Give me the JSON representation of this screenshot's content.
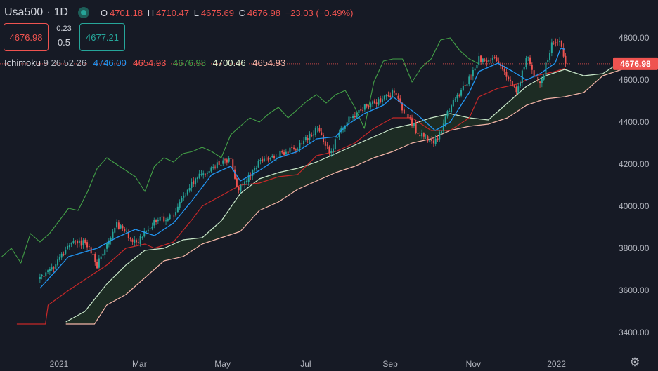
{
  "header": {
    "symbol": "Usa500",
    "separator": "·",
    "timeframe": "1D",
    "ohlc": {
      "o_label": "O",
      "o_value": "4701.18",
      "h_label": "H",
      "h_value": "4710.47",
      "l_label": "L",
      "l_value": "4675.69",
      "c_label": "C",
      "c_value": "4676.98",
      "change": "−23.03 (−0.49%)"
    }
  },
  "trade": {
    "sell_price": "4676.98",
    "spread_top": "0.23",
    "spread_bottom": "0.5",
    "buy_price": "4677.21"
  },
  "indicator": {
    "name": "Ichimoku",
    "params": "9 26 52 26",
    "values": [
      "4746.00",
      "4654.93",
      "4676.98",
      "4700.46",
      "4654.93"
    ],
    "value_colors": [
      "#2196f3",
      "#ef5350",
      "#43a047",
      "#e0f2d0",
      "#f4b5a8"
    ]
  },
  "colors": {
    "background": "#161a25",
    "up": "#26a69a",
    "down": "#ef5350",
    "conversion_line": "#2196f3",
    "base_line": "#c62828",
    "lagging_span": "#43a047",
    "leading_span_a": "#c8e6c9",
    "leading_span_b": "#f4b5a8",
    "cloud_fill": "#1e3024",
    "price_label_bg": "#ef5350"
  },
  "icons": {
    "settings": "gear-icon"
  },
  "chart_data": {
    "type": "candlestick",
    "ylim": [
      3400,
      4800
    ],
    "y_ticks": [
      "4800.00",
      "4600.00",
      "4400.00",
      "4200.00",
      "4000.00",
      "3800.00",
      "3600.00",
      "3400.00"
    ],
    "x_ticks": [
      "2021",
      "Mar",
      "May",
      "Jul",
      "Sep",
      "Nov",
      "2022"
    ],
    "current_price": "4676.98",
    "close_anchors": [
      [
        "2020-12-18",
        3650
      ],
      [
        "2020-12-30",
        3720
      ],
      [
        "2021-01-08",
        3820
      ],
      [
        "2021-01-20",
        3830
      ],
      [
        "2021-01-29",
        3720
      ],
      [
        "2021-02-12",
        3920
      ],
      [
        "2021-02-26",
        3820
      ],
      [
        "2021-03-12",
        3930
      ],
      [
        "2021-03-26",
        3950
      ],
      [
        "2021-04-09",
        4120
      ],
      [
        "2021-04-23",
        4180
      ],
      [
        "2021-05-07",
        4230
      ],
      [
        "2021-05-12",
        4070
      ],
      [
        "2021-05-28",
        4210
      ],
      [
        "2021-06-11",
        4250
      ],
      [
        "2021-06-25",
        4280
      ],
      [
        "2021-07-09",
        4370
      ],
      [
        "2021-07-19",
        4260
      ],
      [
        "2021-07-30",
        4400
      ],
      [
        "2021-08-13",
        4470
      ],
      [
        "2021-08-27",
        4510
      ],
      [
        "2021-09-03",
        4540
      ],
      [
        "2021-09-20",
        4360
      ],
      [
        "2021-10-04",
        4300
      ],
      [
        "2021-10-15",
        4470
      ],
      [
        "2021-10-29",
        4610
      ],
      [
        "2021-11-05",
        4700
      ],
      [
        "2021-11-19",
        4700
      ],
      [
        "2021-11-30",
        4560
      ],
      [
        "2021-12-03",
        4540
      ],
      [
        "2021-12-10",
        4710
      ],
      [
        "2021-12-20",
        4570
      ],
      [
        "2021-12-29",
        4790
      ],
      [
        "2022-01-04",
        4790
      ],
      [
        "2022-01-07",
        4676.98
      ]
    ],
    "tenkan_anchors": [
      [
        "2020-12-18",
        3610
      ],
      [
        "2021-01-08",
        3760
      ],
      [
        "2021-01-29",
        3800
      ],
      [
        "2021-02-12",
        3850
      ],
      [
        "2021-02-26",
        3890
      ],
      [
        "2021-03-12",
        3860
      ],
      [
        "2021-03-26",
        3920
      ],
      [
        "2021-04-09",
        4030
      ],
      [
        "2021-04-23",
        4150
      ],
      [
        "2021-05-07",
        4190
      ],
      [
        "2021-05-14",
        4120
      ],
      [
        "2021-05-28",
        4170
      ],
      [
        "2021-06-11",
        4230
      ],
      [
        "2021-06-25",
        4260
      ],
      [
        "2021-07-09",
        4320
      ],
      [
        "2021-07-23",
        4330
      ],
      [
        "2021-07-30",
        4380
      ],
      [
        "2021-08-13",
        4440
      ],
      [
        "2021-08-27",
        4480
      ],
      [
        "2021-09-03",
        4520
      ],
      [
        "2021-09-20",
        4440
      ],
      [
        "2021-10-04",
        4360
      ],
      [
        "2021-10-15",
        4400
      ],
      [
        "2021-10-29",
        4540
      ],
      [
        "2021-11-05",
        4640
      ],
      [
        "2021-11-19",
        4680
      ],
      [
        "2021-11-30",
        4640
      ],
      [
        "2021-12-10",
        4600
      ],
      [
        "2021-12-20",
        4630
      ],
      [
        "2021-12-31",
        4680
      ],
      [
        "2022-01-04",
        4750
      ],
      [
        "2022-01-07",
        4746
      ]
    ],
    "kijun_anchors": [
      [
        "2020-12-01",
        3440
      ],
      [
        "2020-12-22",
        3440
      ],
      [
        "2020-12-24",
        3530
      ],
      [
        "2021-01-08",
        3600
      ],
      [
        "2021-01-22",
        3660
      ],
      [
        "2021-02-05",
        3720
      ],
      [
        "2021-02-19",
        3800
      ],
      [
        "2021-03-05",
        3820
      ],
      [
        "2021-03-12",
        3800
      ],
      [
        "2021-03-26",
        3830
      ],
      [
        "2021-04-09",
        3940
      ],
      [
        "2021-04-16",
        4000
      ],
      [
        "2021-04-30",
        4050
      ],
      [
        "2021-05-14",
        4100
      ],
      [
        "2021-05-28",
        4110
      ],
      [
        "2021-06-11",
        4140
      ],
      [
        "2021-06-25",
        4150
      ],
      [
        "2021-07-09",
        4240
      ],
      [
        "2021-07-23",
        4260
      ],
      [
        "2021-08-06",
        4300
      ],
      [
        "2021-08-20",
        4370
      ],
      [
        "2021-09-03",
        4420
      ],
      [
        "2021-09-17",
        4420
      ],
      [
        "2021-10-01",
        4360
      ],
      [
        "2021-10-15",
        4360
      ],
      [
        "2021-10-29",
        4420
      ],
      [
        "2021-11-05",
        4520
      ],
      [
        "2021-11-19",
        4560
      ],
      [
        "2021-12-03",
        4580
      ],
      [
        "2021-12-17",
        4620
      ],
      [
        "2021-12-31",
        4640
      ],
      [
        "2022-01-07",
        4655
      ]
    ],
    "chikou_anchors": [
      [
        "2020-11-20",
        3760
      ],
      [
        "2020-11-27",
        3800
      ],
      [
        "2020-12-04",
        3730
      ],
      [
        "2020-12-11",
        3870
      ],
      [
        "2020-12-18",
        3830
      ],
      [
        "2020-12-25",
        3870
      ],
      [
        "2021-01-01",
        3930
      ],
      [
        "2021-01-08",
        3990
      ],
      [
        "2021-01-15",
        3980
      ],
      [
        "2021-01-22",
        4070
      ],
      [
        "2021-01-29",
        4180
      ],
      [
        "2021-02-05",
        4230
      ],
      [
        "2021-02-12",
        4200
      ],
      [
        "2021-02-19",
        4170
      ],
      [
        "2021-02-26",
        4140
      ],
      [
        "2021-03-05",
        4070
      ],
      [
        "2021-03-12",
        4190
      ],
      [
        "2021-03-19",
        4230
      ],
      [
        "2021-03-26",
        4210
      ],
      [
        "2021-04-02",
        4250
      ],
      [
        "2021-04-09",
        4260
      ],
      [
        "2021-04-16",
        4280
      ],
      [
        "2021-04-23",
        4260
      ],
      [
        "2021-04-30",
        4230
      ],
      [
        "2021-05-07",
        4340
      ],
      [
        "2021-05-14",
        4380
      ],
      [
        "2021-05-21",
        4420
      ],
      [
        "2021-05-28",
        4400
      ],
      [
        "2021-06-04",
        4440
      ],
      [
        "2021-06-11",
        4470
      ],
      [
        "2021-06-18",
        4420
      ],
      [
        "2021-06-25",
        4460
      ],
      [
        "2021-07-02",
        4500
      ],
      [
        "2021-07-09",
        4530
      ],
      [
        "2021-07-16",
        4490
      ],
      [
        "2021-07-23",
        4530
      ],
      [
        "2021-07-30",
        4550
      ],
      [
        "2021-08-06",
        4470
      ],
      [
        "2021-08-13",
        4370
      ],
      [
        "2021-08-20",
        4590
      ],
      [
        "2021-08-27",
        4690
      ],
      [
        "2021-09-03",
        4700
      ],
      [
        "2021-09-10",
        4700
      ],
      [
        "2021-09-17",
        4590
      ],
      [
        "2021-09-24",
        4660
      ],
      [
        "2021-10-01",
        4700
      ],
      [
        "2021-10-08",
        4790
      ],
      [
        "2021-10-15",
        4800
      ],
      [
        "2021-10-22",
        4740
      ],
      [
        "2021-10-29",
        4700
      ],
      [
        "2021-11-05",
        4676.98
      ]
    ],
    "span_a_anchors": [
      [
        "2021-01-06",
        3450
      ],
      [
        "2021-01-20",
        3500
      ],
      [
        "2021-02-05",
        3630
      ],
      [
        "2021-02-19",
        3720
      ],
      [
        "2021-03-05",
        3790
      ],
      [
        "2021-03-19",
        3800
      ],
      [
        "2021-04-02",
        3840
      ],
      [
        "2021-04-16",
        3850
      ],
      [
        "2021-04-30",
        3930
      ],
      [
        "2021-05-14",
        4060
      ],
      [
        "2021-05-28",
        4130
      ],
      [
        "2021-06-11",
        4160
      ],
      [
        "2021-06-25",
        4180
      ],
      [
        "2021-07-09",
        4210
      ],
      [
        "2021-07-23",
        4250
      ],
      [
        "2021-08-06",
        4290
      ],
      [
        "2021-08-20",
        4330
      ],
      [
        "2021-09-03",
        4370
      ],
      [
        "2021-09-17",
        4390
      ],
      [
        "2021-10-01",
        4420
      ],
      [
        "2021-10-15",
        4440
      ],
      [
        "2021-10-29",
        4420
      ],
      [
        "2021-11-12",
        4410
      ],
      [
        "2021-11-26",
        4490
      ],
      [
        "2021-12-10",
        4570
      ],
      [
        "2021-12-24",
        4620
      ],
      [
        "2022-01-07",
        4650
      ],
      [
        "2022-01-21",
        4620
      ],
      [
        "2022-02-04",
        4630
      ],
      [
        "2022-02-11",
        4660
      ],
      [
        "2022-02-18",
        4700
      ]
    ],
    "span_b_anchors": [
      [
        "2021-01-06",
        3440
      ],
      [
        "2021-01-27",
        3440
      ],
      [
        "2021-02-05",
        3530
      ],
      [
        "2021-02-19",
        3580
      ],
      [
        "2021-03-05",
        3660
      ],
      [
        "2021-03-19",
        3740
      ],
      [
        "2021-04-02",
        3760
      ],
      [
        "2021-04-16",
        3820
      ],
      [
        "2021-04-30",
        3850
      ],
      [
        "2021-05-14",
        3880
      ],
      [
        "2021-05-28",
        3980
      ],
      [
        "2021-06-11",
        4020
      ],
      [
        "2021-06-25",
        4080
      ],
      [
        "2021-07-09",
        4120
      ],
      [
        "2021-07-23",
        4160
      ],
      [
        "2021-08-06",
        4190
      ],
      [
        "2021-08-20",
        4230
      ],
      [
        "2021-09-03",
        4260
      ],
      [
        "2021-09-17",
        4300
      ],
      [
        "2021-10-01",
        4320
      ],
      [
        "2021-10-15",
        4360
      ],
      [
        "2021-10-29",
        4380
      ],
      [
        "2021-11-12",
        4390
      ],
      [
        "2021-11-26",
        4420
      ],
      [
        "2021-12-10",
        4480
      ],
      [
        "2021-12-24",
        4510
      ],
      [
        "2022-01-07",
        4520
      ],
      [
        "2022-01-21",
        4540
      ],
      [
        "2022-02-04",
        4620
      ],
      [
        "2022-02-18",
        4650
      ]
    ]
  }
}
